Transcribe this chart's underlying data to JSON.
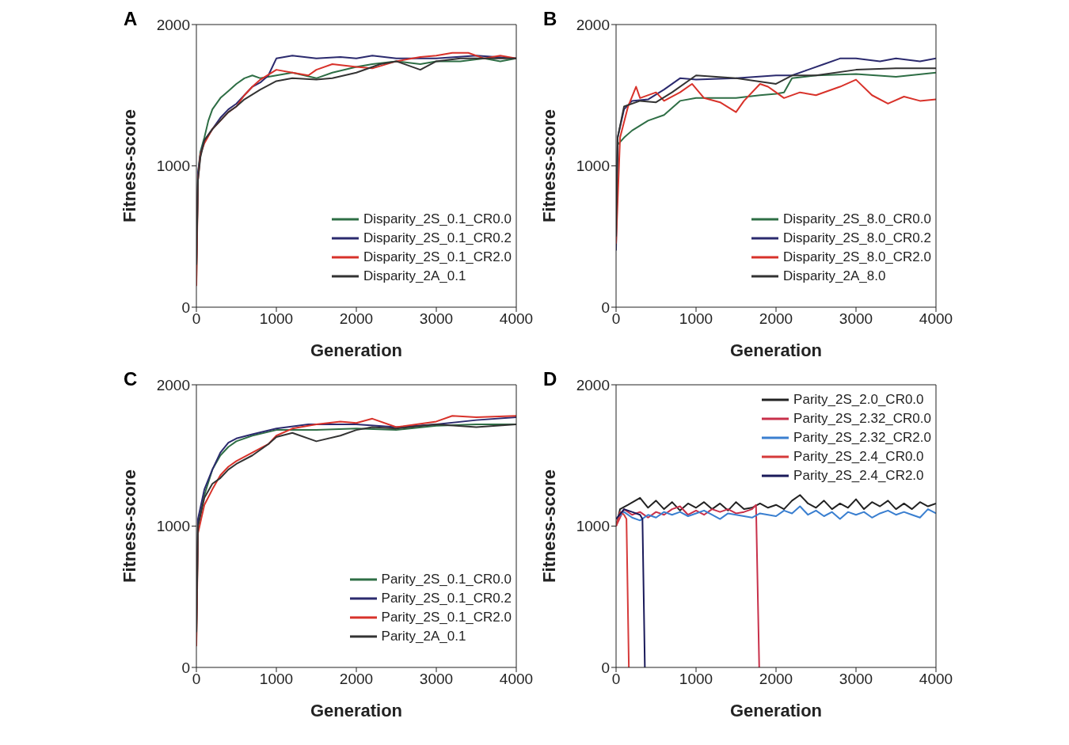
{
  "chart_data": [
    {
      "type": "line",
      "title": "A",
      "xlabel": "Generation",
      "ylabel": "Fitness-score",
      "xlim": [
        0,
        4000
      ],
      "ylim": [
        0,
        2000
      ],
      "xticks": [
        0,
        1000,
        2000,
        3000,
        4000
      ],
      "yticks": [
        0,
        1000,
        2000
      ],
      "legend": "bottom right",
      "series": [
        {
          "name": "Disparity_2S_0.1_CR0.0",
          "color": "#2e6e45",
          "x": [
            0,
            20,
            50,
            100,
            150,
            200,
            300,
            400,
            500,
            600,
            700,
            800,
            1000,
            1200,
            1500,
            1700,
            2000,
            2200,
            2500,
            2800,
            3000,
            3300,
            3600,
            3800,
            4000
          ],
          "values": [
            200,
            950,
            1100,
            1200,
            1320,
            1400,
            1480,
            1530,
            1580,
            1620,
            1640,
            1620,
            1640,
            1660,
            1620,
            1660,
            1700,
            1720,
            1740,
            1720,
            1740,
            1740,
            1760,
            1740,
            1760
          ]
        },
        {
          "name": "Disparity_2S_0.1_CR0.2",
          "color": "#2b2a6e",
          "x": [
            0,
            20,
            50,
            100,
            200,
            300,
            400,
            500,
            600,
            700,
            800,
            900,
            950,
            1000,
            1200,
            1500,
            1800,
            2000,
            2200,
            2500,
            3000,
            3500,
            4000
          ],
          "values": [
            300,
            950,
            1080,
            1180,
            1260,
            1340,
            1400,
            1440,
            1500,
            1560,
            1590,
            1640,
            1700,
            1760,
            1780,
            1760,
            1770,
            1760,
            1780,
            1760,
            1760,
            1780,
            1760
          ]
        },
        {
          "name": "Disparity_2S_0.1_CR2.0",
          "color": "#d8322a",
          "x": [
            0,
            20,
            50,
            100,
            200,
            300,
            400,
            500,
            600,
            700,
            800,
            1000,
            1200,
            1400,
            1500,
            1700,
            2000,
            2200,
            2500,
            2800,
            3000,
            3200,
            3400,
            3600,
            3800,
            4000
          ],
          "values": [
            150,
            900,
            1080,
            1160,
            1260,
            1320,
            1380,
            1420,
            1500,
            1560,
            1610,
            1680,
            1660,
            1640,
            1680,
            1720,
            1700,
            1690,
            1740,
            1770,
            1780,
            1800,
            1800,
            1760,
            1780,
            1760
          ]
        },
        {
          "name": "Disparity_2A_0.1",
          "color": "#333333",
          "x": [
            0,
            20,
            50,
            100,
            200,
            300,
            400,
            500,
            600,
            800,
            1000,
            1200,
            1500,
            1700,
            2000,
            2300,
            2500,
            2800,
            3000,
            3300,
            3600,
            4000
          ],
          "values": [
            300,
            900,
            1060,
            1180,
            1260,
            1320,
            1380,
            1420,
            1470,
            1540,
            1600,
            1620,
            1610,
            1620,
            1660,
            1720,
            1740,
            1680,
            1740,
            1760,
            1760,
            1760
          ]
        }
      ]
    },
    {
      "type": "line",
      "title": "B",
      "xlabel": "Generation",
      "ylabel": "Fitness-score",
      "xlim": [
        0,
        4000
      ],
      "ylim": [
        0,
        2000
      ],
      "xticks": [
        0,
        1000,
        2000,
        3000,
        4000
      ],
      "yticks": [
        0,
        1000,
        2000
      ],
      "legend": "bottom right",
      "series": [
        {
          "name": "Disparity_2S_8.0_CR0.0",
          "color": "#2e6e45",
          "x": [
            0,
            20,
            100,
            200,
            400,
            600,
            800,
            1000,
            1500,
            1800,
            2000,
            2100,
            2200,
            2500,
            3000,
            3500,
            4000
          ],
          "values": [
            700,
            1150,
            1200,
            1250,
            1320,
            1360,
            1460,
            1480,
            1480,
            1500,
            1510,
            1520,
            1620,
            1640,
            1650,
            1630,
            1660
          ]
        },
        {
          "name": "Disparity_2S_8.0_CR0.2",
          "color": "#2b2a6e",
          "x": [
            0,
            20,
            100,
            200,
            400,
            600,
            800,
            1000,
            1500,
            2000,
            2200,
            2400,
            2600,
            2800,
            3000,
            3300,
            3500,
            3800,
            4000
          ],
          "values": [
            400,
            1200,
            1400,
            1460,
            1470,
            1540,
            1620,
            1610,
            1620,
            1640,
            1640,
            1680,
            1720,
            1760,
            1760,
            1740,
            1760,
            1740,
            1760
          ]
        },
        {
          "name": "Disparity_2S_8.0_CR2.0",
          "color": "#d8322a",
          "x": [
            0,
            50,
            150,
            250,
            300,
            500,
            600,
            800,
            950,
            1100,
            1300,
            1500,
            1600,
            1800,
            1900,
            2000,
            2100,
            2300,
            2500,
            2800,
            3000,
            3200,
            3400,
            3600,
            3800,
            4000
          ],
          "values": [
            450,
            1200,
            1420,
            1560,
            1480,
            1520,
            1460,
            1520,
            1580,
            1480,
            1450,
            1380,
            1460,
            1580,
            1560,
            1520,
            1480,
            1520,
            1500,
            1560,
            1610,
            1500,
            1440,
            1490,
            1460,
            1470
          ]
        },
        {
          "name": "Disparity_2A_8.0",
          "color": "#333333",
          "x": [
            0,
            20,
            100,
            300,
            500,
            700,
            1000,
            1500,
            2000,
            2200,
            2500,
            3000,
            3500,
            4000
          ],
          "values": [
            500,
            1200,
            1420,
            1460,
            1450,
            1520,
            1640,
            1620,
            1580,
            1640,
            1640,
            1680,
            1690,
            1690
          ]
        }
      ]
    },
    {
      "type": "line",
      "title": "C",
      "xlabel": "Generation",
      "ylabel": "Fitness-score",
      "xlim": [
        0,
        4000
      ],
      "ylim": [
        0,
        2000
      ],
      "xticks": [
        0,
        1000,
        2000,
        3000,
        4000
      ],
      "yticks": [
        0,
        1000,
        2000
      ],
      "legend": "bottom right",
      "series": [
        {
          "name": "Parity_2S_0.1_CR0.0",
          "color": "#2e6e45",
          "x": [
            0,
            20,
            100,
            200,
            300,
            400,
            500,
            700,
            1000,
            1500,
            2000,
            2500,
            3000,
            3500,
            4000
          ],
          "values": [
            200,
            1000,
            1220,
            1400,
            1500,
            1560,
            1600,
            1640,
            1680,
            1680,
            1690,
            1680,
            1710,
            1720,
            1720
          ]
        },
        {
          "name": "Parity_2S_0.1_CR0.2",
          "color": "#2b2a6e",
          "x": [
            0,
            20,
            100,
            200,
            300,
            400,
            500,
            700,
            1000,
            1400,
            2000,
            2500,
            3000,
            3500,
            4000
          ],
          "values": [
            300,
            1050,
            1260,
            1400,
            1520,
            1590,
            1620,
            1650,
            1690,
            1720,
            1720,
            1700,
            1720,
            1750,
            1770
          ]
        },
        {
          "name": "Parity_2S_0.1_CR2.0",
          "color": "#d8322a",
          "x": [
            0,
            20,
            100,
            200,
            300,
            400,
            500,
            700,
            900,
            1000,
            1200,
            1500,
            1800,
            2000,
            2200,
            2500,
            3000,
            3200,
            3500,
            4000
          ],
          "values": [
            150,
            950,
            1150,
            1260,
            1360,
            1420,
            1460,
            1520,
            1580,
            1640,
            1690,
            1720,
            1740,
            1730,
            1760,
            1700,
            1740,
            1780,
            1770,
            1780
          ]
        },
        {
          "name": "Parity_2A_0.1",
          "color": "#333333",
          "x": [
            0,
            20,
            100,
            200,
            300,
            400,
            500,
            700,
            900,
            1000,
            1200,
            1500,
            1800,
            2000,
            2200,
            2500,
            3000,
            3500,
            4000
          ],
          "values": [
            250,
            1000,
            1200,
            1300,
            1340,
            1400,
            1440,
            1500,
            1580,
            1630,
            1660,
            1600,
            1640,
            1680,
            1700,
            1690,
            1720,
            1700,
            1720
          ]
        }
      ]
    },
    {
      "type": "line",
      "title": "D",
      "xlabel": "Generation",
      "ylabel": "Fitness-score",
      "xlim": [
        0,
        4000
      ],
      "ylim": [
        0,
        2000
      ],
      "xticks": [
        0,
        1000,
        2000,
        3000,
        4000
      ],
      "yticks": [
        0,
        1000,
        2000
      ],
      "legend": "top right",
      "series": [
        {
          "name": "Parity_2S_2.0_CR0.0",
          "color": "#222222",
          "x": [
            0,
            50,
            150,
            300,
            400,
            500,
            600,
            700,
            800,
            900,
            1000,
            1100,
            1200,
            1300,
            1400,
            1500,
            1600,
            1700,
            1800,
            1900,
            2000,
            2100,
            2200,
            2300,
            2400,
            2500,
            2600,
            2700,
            2800,
            2900,
            3000,
            3100,
            3200,
            3300,
            3400,
            3500,
            3600,
            3700,
            3800,
            3900,
            4000
          ],
          "values": [
            1000,
            1120,
            1150,
            1200,
            1130,
            1180,
            1120,
            1170,
            1110,
            1160,
            1130,
            1170,
            1120,
            1160,
            1110,
            1170,
            1120,
            1130,
            1160,
            1130,
            1150,
            1120,
            1180,
            1220,
            1160,
            1130,
            1180,
            1120,
            1160,
            1130,
            1190,
            1120,
            1170,
            1140,
            1180,
            1120,
            1160,
            1120,
            1170,
            1140,
            1160
          ]
        },
        {
          "name": "Parity_2S_2.32_CR0.0",
          "color": "#c8304a",
          "x": [
            0,
            100,
            200,
            300,
            400,
            500,
            600,
            700,
            800,
            900,
            1000,
            1100,
            1200,
            1300,
            1400,
            1500,
            1600,
            1700,
            1750,
            1790
          ],
          "values": [
            1000,
            1120,
            1080,
            1100,
            1060,
            1100,
            1080,
            1120,
            1140,
            1080,
            1110,
            1080,
            1120,
            1100,
            1120,
            1090,
            1100,
            1120,
            1150,
            0
          ]
        },
        {
          "name": "Parity_2S_2.32_CR2.0",
          "color": "#3a7fd0",
          "x": [
            0,
            100,
            200,
            300,
            400,
            500,
            600,
            700,
            800,
            900,
            1000,
            1100,
            1200,
            1300,
            1400,
            1500,
            1600,
            1700,
            1800,
            1900,
            2000,
            2100,
            2200,
            2300,
            2400,
            2500,
            2600,
            2700,
            2800,
            2900,
            3000,
            3100,
            3200,
            3300,
            3400,
            3500,
            3600,
            3700,
            3800,
            3900,
            4000
          ],
          "values": [
            1050,
            1100,
            1060,
            1040,
            1080,
            1060,
            1100,
            1080,
            1100,
            1070,
            1090,
            1110,
            1080,
            1050,
            1090,
            1080,
            1070,
            1060,
            1090,
            1080,
            1070,
            1110,
            1090,
            1140,
            1080,
            1110,
            1070,
            1100,
            1050,
            1100,
            1080,
            1100,
            1060,
            1090,
            1110,
            1080,
            1100,
            1080,
            1060,
            1120,
            1090
          ]
        },
        {
          "name": "Parity_2S_2.4_CR0.0",
          "color": "#d63a3a",
          "x": [
            0,
            50,
            100,
            130,
            160
          ],
          "values": [
            1000,
            1100,
            1080,
            1050,
            0
          ]
        },
        {
          "name": "Parity_2S_2.4_CR2.0",
          "color": "#1a1a5a",
          "x": [
            0,
            100,
            200,
            300,
            330,
            360
          ],
          "values": [
            1050,
            1120,
            1100,
            1080,
            1050,
            0
          ]
        }
      ]
    }
  ]
}
